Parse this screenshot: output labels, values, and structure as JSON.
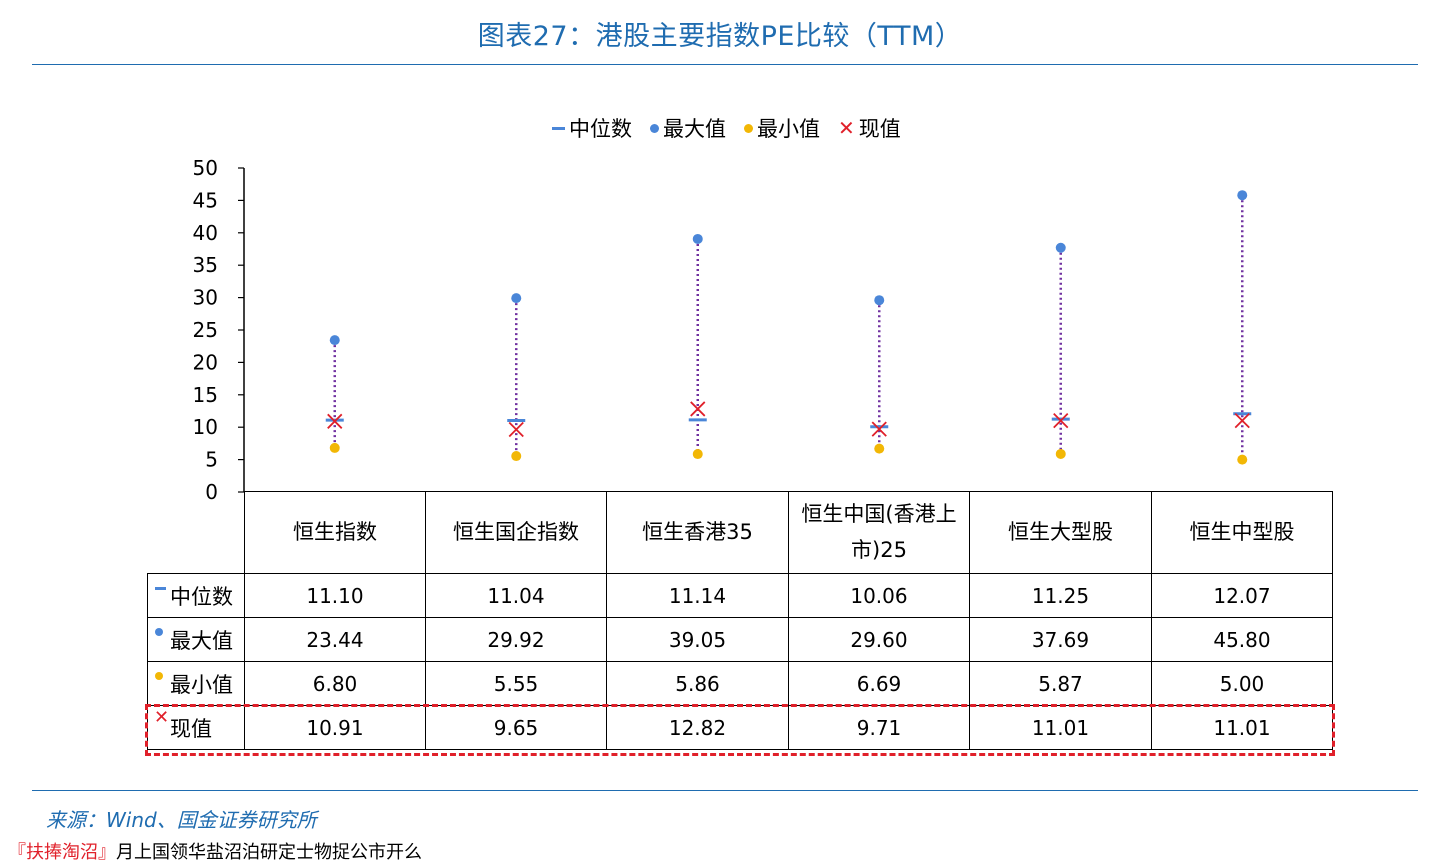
{
  "title": "图表27：港股主要指数PE比较（TTM）",
  "source": "来源：Wind、国金证券研究所",
  "bottom_cut_text": {
    "accent": "『扶捧淘沼』",
    "rest": "月上国领华盐沼泊研定士物捉公市开么"
  },
  "colors": {
    "title": "#1f6cb0",
    "median": "#4a86d8",
    "max": "#4a86d8",
    "min": "#f2b705",
    "current": "#e0202a",
    "range_line": "#7030a0",
    "highlight": "#e0202a"
  },
  "legend": [
    {
      "label": "中位数",
      "icon": "dash-icon",
      "color": "#4a86d8"
    },
    {
      "label": "最大值",
      "icon": "dot-icon",
      "color": "#4a86d8"
    },
    {
      "label": "最小值",
      "icon": "dot-icon",
      "color": "#f2b705"
    },
    {
      "label": "现值",
      "icon": "x-icon",
      "color": "#e0202a"
    }
  ],
  "table": {
    "headers": [
      "恒生指数",
      "恒生国企指数",
      "恒生香港35",
      "恒生中国(香港上市)25",
      "恒生大型股",
      "恒生中型股"
    ],
    "rows": [
      {
        "label": "中位数",
        "icon": "dash-icon",
        "values": [
          "11.10",
          "11.04",
          "11.14",
          "10.06",
          "11.25",
          "12.07"
        ]
      },
      {
        "label": "最大值",
        "icon": "dot-icon",
        "values": [
          "23.44",
          "29.92",
          "39.05",
          "29.60",
          "37.69",
          "45.80"
        ]
      },
      {
        "label": "最小值",
        "icon": "dot-icon",
        "values": [
          "6.80",
          "5.55",
          "5.86",
          "6.69",
          "5.87",
          "5.00"
        ]
      },
      {
        "label": "现值",
        "icon": "x-icon",
        "values": [
          "10.91",
          "9.65",
          "12.82",
          "9.71",
          "11.01",
          "11.01"
        ]
      }
    ]
  },
  "chart_data": {
    "type": "scatter",
    "title": "图表27：港股主要指数PE比较（TTM）",
    "categories": [
      "恒生指数",
      "恒生国企指数",
      "恒生香港35",
      "恒生中国(香港上市)25",
      "恒生大型股",
      "恒生中型股"
    ],
    "series": [
      {
        "name": "中位数",
        "values": [
          11.1,
          11.04,
          11.14,
          10.06,
          11.25,
          12.07
        ]
      },
      {
        "name": "最大值",
        "values": [
          23.44,
          29.92,
          39.05,
          29.6,
          37.69,
          45.8
        ]
      },
      {
        "name": "最小值",
        "values": [
          6.8,
          5.55,
          5.86,
          6.69,
          5.87,
          5.0
        ]
      },
      {
        "name": "现值",
        "values": [
          10.91,
          9.65,
          12.82,
          9.71,
          11.01,
          11.01
        ]
      }
    ],
    "ylim": [
      0,
      50
    ],
    "yticks": [
      0,
      5,
      10,
      15,
      20,
      25,
      30,
      35,
      40,
      45,
      50
    ],
    "grid": false,
    "legend_position": "top"
  }
}
